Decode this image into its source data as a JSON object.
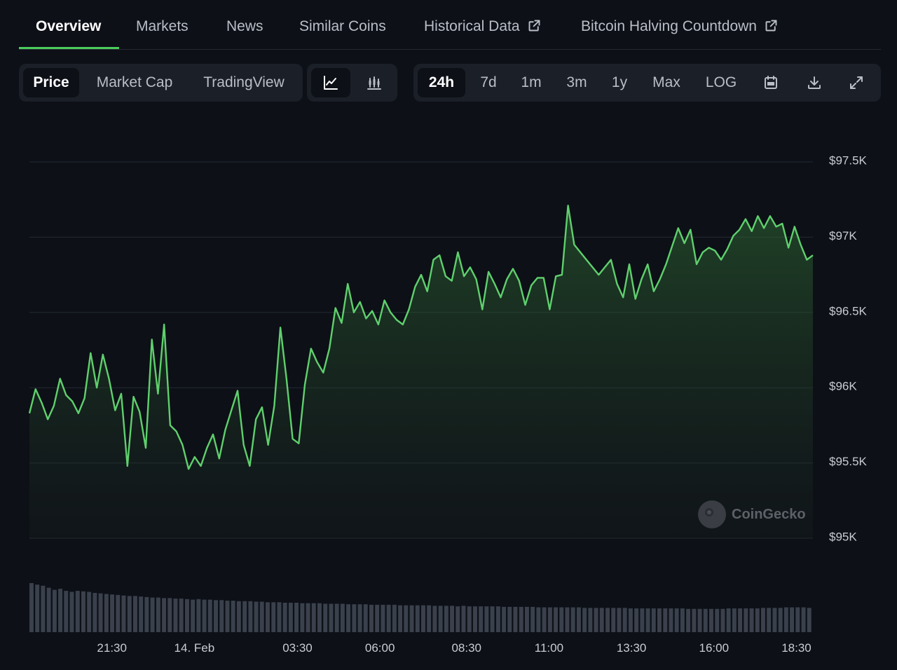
{
  "tabs": [
    {
      "label": "Overview",
      "active": true,
      "external": false
    },
    {
      "label": "Markets",
      "active": false,
      "external": false
    },
    {
      "label": "News",
      "active": false,
      "external": false
    },
    {
      "label": "Similar Coins",
      "active": false,
      "external": false
    },
    {
      "label": "Historical Data",
      "active": false,
      "external": true
    },
    {
      "label": "Bitcoin Halving Countdown",
      "active": false,
      "external": true
    }
  ],
  "chart_type_buttons": [
    {
      "label": "Price",
      "active": true
    },
    {
      "label": "Market Cap",
      "active": false
    },
    {
      "label": "TradingView",
      "active": false
    }
  ],
  "view_buttons": [
    {
      "icon": "line-chart-icon",
      "active": true
    },
    {
      "icon": "candlestick-chart-icon",
      "active": false
    }
  ],
  "range_buttons": [
    {
      "label": "24h",
      "active": true
    },
    {
      "label": "7d",
      "active": false
    },
    {
      "label": "1m",
      "active": false
    },
    {
      "label": "3m",
      "active": false
    },
    {
      "label": "1y",
      "active": false
    },
    {
      "label": "Max",
      "active": false
    },
    {
      "label": "LOG",
      "active": false
    }
  ],
  "tool_icons": [
    "calendar-icon",
    "download-icon",
    "expand-icon"
  ],
  "watermark": "CoinGecko",
  "colors": {
    "accent": "#4bcc5c",
    "background": "#0d1017",
    "panel": "#1b1f27",
    "volume": "#3a414c"
  },
  "chart_data": {
    "type": "area",
    "y_ticks": [
      {
        "value": 97500,
        "label": "$97.5K"
      },
      {
        "value": 97000,
        "label": "$97K"
      },
      {
        "value": 96500,
        "label": "$96.5K"
      },
      {
        "value": 96000,
        "label": "$96K"
      },
      {
        "value": 95500,
        "label": "$95.5K"
      },
      {
        "value": 95000,
        "label": "$95K"
      }
    ],
    "ylim": [
      95000,
      97500
    ],
    "x_ticks": [
      {
        "t": 2.0,
        "label": "21:30"
      },
      {
        "t": 4.0,
        "label": "14. Feb"
      },
      {
        "t": 6.5,
        "label": "03:30"
      },
      {
        "t": 8.5,
        "label": "06:00"
      },
      {
        "t": 10.6,
        "label": "08:30"
      },
      {
        "t": 12.6,
        "label": "11:00"
      },
      {
        "t": 14.6,
        "label": "13:30"
      },
      {
        "t": 16.6,
        "label": "16:00"
      },
      {
        "t": 18.6,
        "label": "18:30"
      }
    ],
    "xlim": [
      0,
      19
    ],
    "grid": true,
    "series": [
      {
        "values": [
          95830,
          95990,
          95900,
          95790,
          95880,
          96060,
          95950,
          95910,
          95830,
          95930,
          96230,
          96000,
          96220,
          96060,
          95850,
          95960,
          95480,
          95940,
          95840,
          95600,
          96320,
          95960,
          96420,
          95750,
          95710,
          95620,
          95460,
          95540,
          95480,
          95600,
          95690,
          95530,
          95720,
          95850,
          95980,
          95620,
          95480,
          95790,
          95870,
          95620,
          95880,
          96400,
          96060,
          95660,
          95630,
          96020,
          96260,
          96170,
          96100,
          96260,
          96530,
          96430,
          96690,
          96500,
          96570,
          96460,
          96510,
          96420,
          96580,
          96500,
          96450,
          96420,
          96520,
          96670,
          96750,
          96640,
          96850,
          96880,
          96740,
          96710,
          96900,
          96740,
          96800,
          96720,
          96520,
          96770,
          96690,
          96600,
          96720,
          96790,
          96710,
          96550,
          96680,
          96730,
          96730,
          96520,
          96740,
          96750,
          97210,
          96950,
          96900,
          96850,
          96800,
          96750,
          96800,
          96850,
          96690,
          96600,
          96820,
          96590,
          96720,
          96820,
          96640,
          96720,
          96820,
          96940,
          97060,
          96960,
          97050,
          96820,
          96900,
          96930,
          96910,
          96850,
          96920,
          97010,
          97050,
          97120,
          97040,
          97140,
          97060,
          97140,
          97070,
          97090,
          96930,
          97070,
          96950,
          96850,
          96880
        ]
      }
    ],
    "volume": [
      95,
      92,
      90,
      86,
      82,
      84,
      80,
      78,
      80,
      79,
      78,
      76,
      75,
      74,
      73,
      72,
      71,
      70,
      70,
      69,
      68,
      67,
      67,
      66,
      66,
      65,
      65,
      64,
      63,
      64,
      63,
      63,
      62,
      62,
      61,
      61,
      60,
      60,
      60,
      59,
      59,
      58,
      58,
      58,
      57,
      57,
      57,
      56,
      56,
      56,
      56,
      55,
      55,
      55,
      55,
      54,
      54,
      54,
      54,
      53,
      53,
      53,
      53,
      53,
      52,
      52,
      52,
      52,
      52,
      52,
      51,
      51,
      51,
      51,
      50,
      51,
      50,
      50,
      50,
      50,
      50,
      50,
      49,
      49,
      49,
      49,
      49,
      49,
      48,
      48,
      48,
      48,
      48,
      48,
      48,
      48,
      47,
      47,
      47,
      47,
      47,
      47,
      47,
      47,
      46,
      46,
      46,
      46,
      46,
      46,
      46,
      46,
      46,
      46,
      45,
      45,
      45,
      45,
      45,
      45,
      45,
      46,
      46,
      46,
      46,
      46,
      46,
      47,
      47,
      47,
      47,
      48,
      48,
      48,
      48,
      47
    ]
  }
}
